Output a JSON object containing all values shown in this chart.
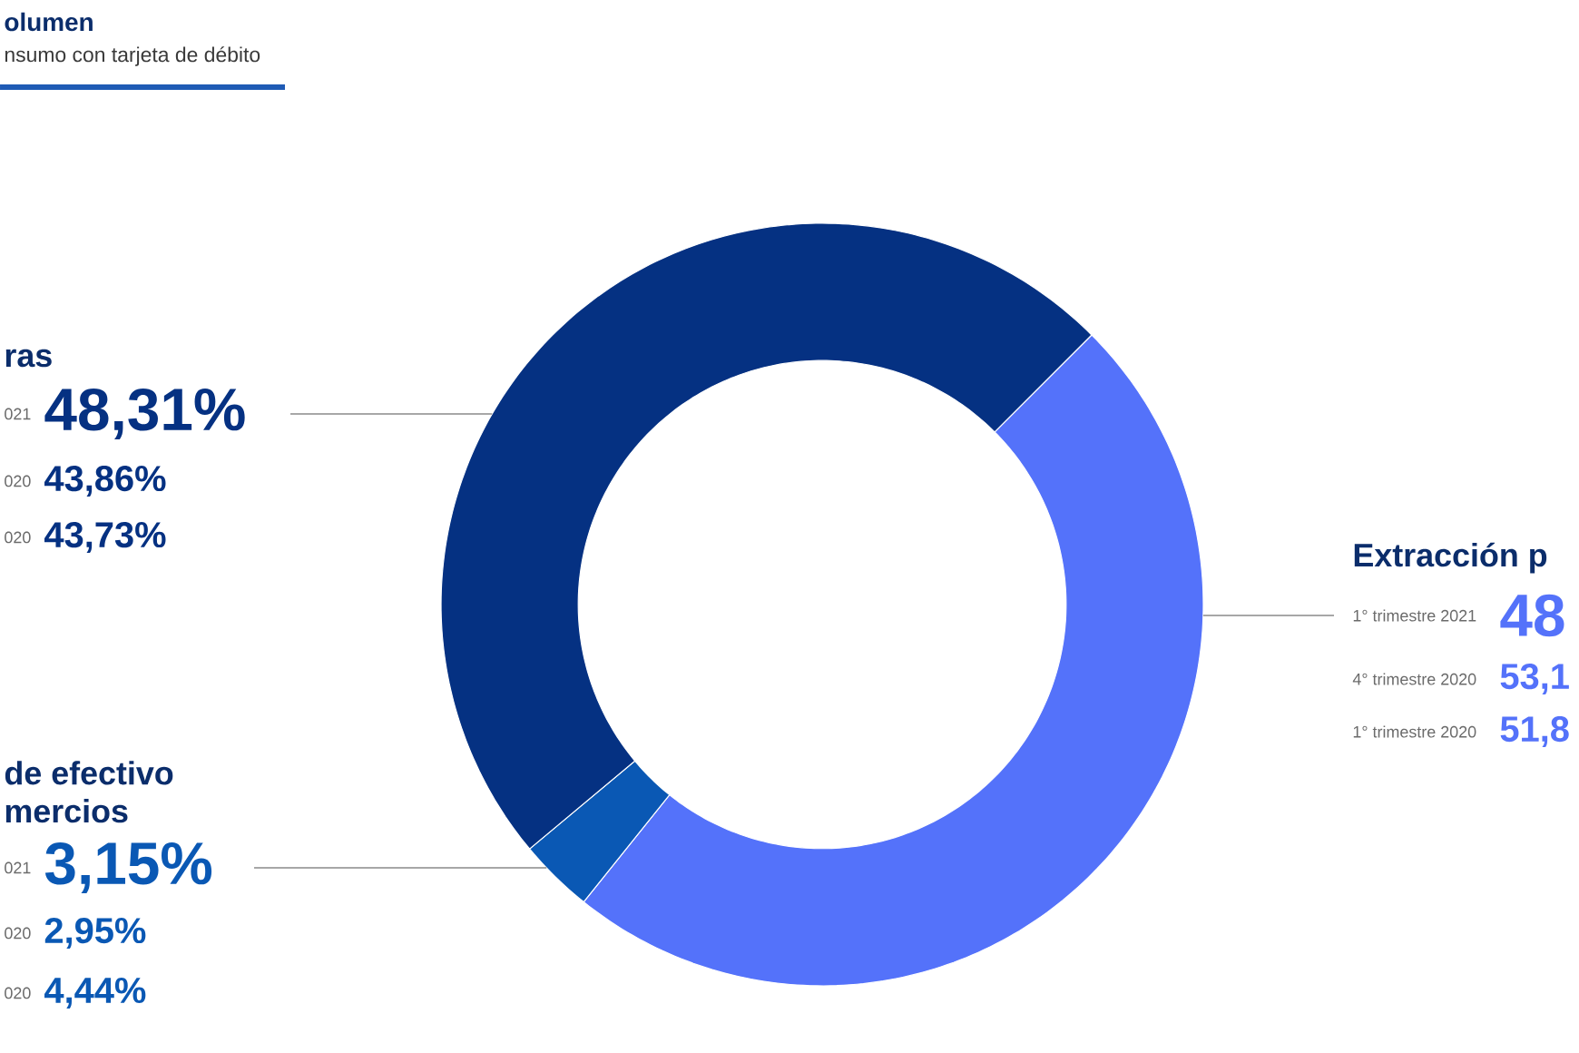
{
  "chart_data": {
    "type": "donut",
    "title": "olumen",
    "subtitle": "nsumo con tarjeta de débito",
    "categories": [
      "Extracción p",
      "de efectivo mercios",
      "ras"
    ],
    "values": [
      48,
      3.15,
      48.31
    ],
    "colors": [
      "#5472fa",
      "#0a58b4",
      "#053182"
    ],
    "value_labels": [
      "48",
      "3,15%",
      "48,31%"
    ],
    "annotations": [
      "1° trimestre 2021",
      "4° trimestre 2020",
      "53,1",
      "1° trimestre 2020",
      "51,8",
      "021",
      "020",
      "2,95%",
      "020",
      "4,44%",
      "021",
      "020",
      "43,86%",
      "020",
      "43,73%"
    ]
  }
}
